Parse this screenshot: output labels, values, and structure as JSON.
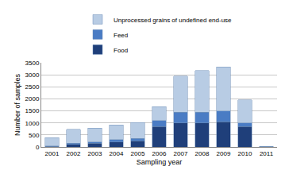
{
  "chart_data": {
    "type": "bar",
    "stacked": true,
    "x_label": "Sampling year",
    "y_label": "Number of samples",
    "categories": [
      "2001",
      "2002",
      "2003",
      "2004",
      "2005",
      "2006",
      "2007",
      "2008",
      "2009",
      "2010",
      "2011"
    ],
    "series": [
      {
        "name": "Food",
        "color": "#1f3f7a",
        "values": [
          20,
          100,
          150,
          200,
          250,
          850,
          1000,
          1000,
          1050,
          850,
          20
        ]
      },
      {
        "name": "Feed",
        "color": "#4a7cc4",
        "values": [
          20,
          50,
          50,
          100,
          100,
          250,
          450,
          450,
          450,
          150,
          5
        ]
      },
      {
        "name": "Unprocessed grains of undefined end-use",
        "color": "#b8cce4",
        "values": [
          340,
          580,
          580,
          620,
          670,
          580,
          1500,
          1730,
          1820,
          950,
          5
        ]
      }
    ],
    "ylim": [
      0,
      3500
    ],
    "yticks": [
      0,
      500,
      1000,
      1500,
      2000,
      2500,
      3000,
      3500
    ],
    "grid": true,
    "legend": "top"
  }
}
